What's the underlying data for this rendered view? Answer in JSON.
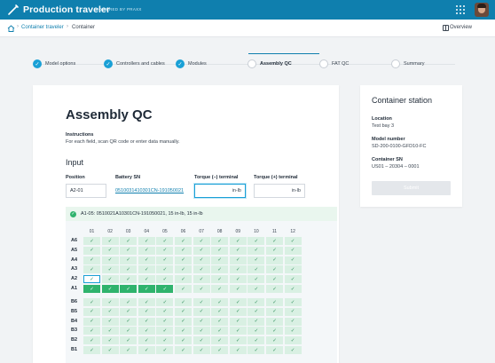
{
  "app": {
    "title": "Production traveler",
    "subtitle": "POWERED BY PRAXX"
  },
  "breadcrumb": {
    "items": [
      "Container traveler",
      "Container"
    ],
    "overview_label": "Overview"
  },
  "stepper": {
    "steps": [
      {
        "label": "Model options",
        "state": "done"
      },
      {
        "label": "Controllers and cables",
        "state": "done"
      },
      {
        "label": "Modules",
        "state": "done"
      },
      {
        "label": "Assembly QC",
        "state": "active"
      },
      {
        "label": "FAT QC",
        "state": "todo"
      },
      {
        "label": "Summary",
        "state": "todo"
      }
    ]
  },
  "main": {
    "title": "Assembly QC",
    "instructions_title": "Instructions",
    "instructions_body": "For each field, scan QR code or enter data manually.",
    "input_title": "Input",
    "fields": {
      "position_label": "Position",
      "position_value": "A2-01",
      "battery_label": "Battery SN",
      "battery_value": "05100314103​01CN-191050021",
      "torque_minus_label": "Torque (–) terminal",
      "torque_minus_unit": "in-lb",
      "torque_plus_label": "Torque (+) terminal",
      "torque_plus_unit": "in-lb"
    },
    "status_text": "A1-05: 0510021A10301CN-191050021, 15 in-lb, 15 in-lb",
    "grid": {
      "columns": [
        "01",
        "02",
        "03",
        "04",
        "05",
        "06",
        "07",
        "08",
        "09",
        "10",
        "11",
        "12"
      ],
      "rows_top": [
        "A6",
        "A5",
        "A4",
        "A3",
        "A2",
        "A1"
      ],
      "rows_bottom": [
        "B6",
        "B5",
        "B4",
        "B3",
        "B2",
        "B1"
      ],
      "check_glyph": "✓",
      "selected_cell": "A2-01",
      "full_cells_row": "A1",
      "full_cells_count": 5
    }
  },
  "side": {
    "title": "Container station",
    "location_label": "Location",
    "location_value": "Test bay 3",
    "model_label": "Model number",
    "model_value": "SD-200-0100-GFD10-FC",
    "container_label": "Container SN",
    "container_value": "US01 – 20304 – 0001",
    "submit_label": "Submit"
  },
  "colors": {
    "brand": "#0f7fae",
    "accent": "#1aa0d6",
    "success": "#2fb36d",
    "success_light": "#d9f0e3"
  }
}
